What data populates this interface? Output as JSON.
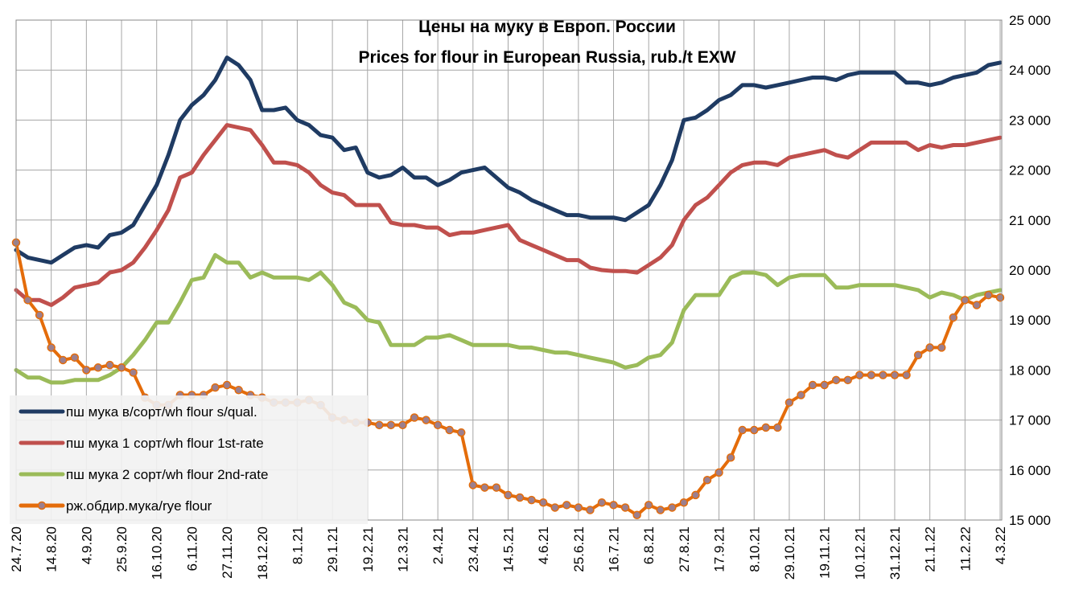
{
  "chart_data": {
    "type": "line",
    "title": [
      "Цены на муку в Европ. России",
      "Prices for flour in European Russia, rub./t EXW"
    ],
    "categories": [
      "24.7.20",
      null,
      null,
      "14.8.20",
      null,
      null,
      "4.9.20",
      null,
      null,
      "25.9.20",
      null,
      null,
      "16.10.20",
      null,
      null,
      "6.11.20",
      null,
      null,
      "27.11.20",
      null,
      null,
      "18.12.20",
      null,
      null,
      "8.1.21",
      null,
      null,
      "29.1.21",
      null,
      null,
      "19.2.21",
      null,
      null,
      "12.3.21",
      null,
      null,
      "2.4.21",
      null,
      null,
      "23.4.21",
      null,
      null,
      "14.5.21",
      null,
      null,
      "4.6.21",
      null,
      null,
      "25.6.21",
      null,
      null,
      "16.7.21",
      null,
      null,
      "6.8.21",
      null,
      null,
      "27.8.21",
      null,
      null,
      "17.9.21",
      null,
      null,
      "8.10.21",
      null,
      null,
      "29.10.21",
      null,
      null,
      "19.11.21",
      null,
      null,
      "10.12.21",
      null,
      null,
      "31.12.21",
      null,
      null,
      "21.1.22",
      null,
      null,
      "11.2.22",
      null,
      null,
      "4.3.22"
    ],
    "series": [
      {
        "name": "пш мука  в/сорт/wh  flour s/qual.",
        "color": "#1f3b63",
        "values": [
          20400,
          20250,
          20200,
          20150,
          20300,
          20450,
          20500,
          20450,
          20700,
          20750,
          20900,
          21300,
          21700,
          22300,
          23000,
          23300,
          23500,
          23800,
          24250,
          24100,
          23800,
          23200,
          23200,
          23250,
          23000,
          22900,
          22700,
          22650,
          22400,
          22450,
          21950,
          21850,
          21900,
          22050,
          21850,
          21850,
          21700,
          21800,
          21950,
          22000,
          22050,
          21850,
          21650,
          21550,
          21400,
          21300,
          21200,
          21100,
          21100,
          21050,
          21050,
          21050,
          21000,
          21150,
          21300,
          21700,
          22200,
          23000,
          23050,
          23200,
          23400,
          23500,
          23700,
          23700,
          23650,
          23700,
          23750,
          23800,
          23850,
          23850,
          23800,
          23900,
          23950,
          23950,
          23950,
          23950,
          23750,
          23750,
          23700,
          23750,
          23850,
          23900,
          23950,
          24100,
          24150
        ]
      },
      {
        "name": "пш мука  1 сорт/wh flour  1st-rate",
        "color": "#c0504d",
        "values": [
          19600,
          19400,
          19400,
          19300,
          19450,
          19650,
          19700,
          19750,
          19950,
          20000,
          20150,
          20450,
          20800,
          21200,
          21850,
          21950,
          22300,
          22600,
          22900,
          22850,
          22800,
          22500,
          22150,
          22150,
          22100,
          21950,
          21700,
          21550,
          21500,
          21300,
          21300,
          21300,
          20950,
          20900,
          20900,
          20850,
          20850,
          20700,
          20750,
          20750,
          20800,
          20850,
          20900,
          20600,
          20500,
          20400,
          20300,
          20200,
          20200,
          20050,
          20000,
          19980,
          19980,
          19950,
          20100,
          20250,
          20500,
          21000,
          21300,
          21450,
          21700,
          21950,
          22100,
          22150,
          22150,
          22100,
          22250,
          22300,
          22350,
          22400,
          22300,
          22250,
          22400,
          22550,
          22550,
          22550,
          22550,
          22400,
          22500,
          22450,
          22500,
          22500,
          22550,
          22600,
          22650
        ]
      },
      {
        "name": "пш мука  2 сорт/wh flour  2nd-rate",
        "color": "#9bbb59",
        "values": [
          18000,
          17850,
          17850,
          17750,
          17750,
          17800,
          17800,
          17800,
          17900,
          18050,
          18300,
          18600,
          18950,
          18950,
          19350,
          19800,
          19850,
          20300,
          20150,
          20150,
          19850,
          19950,
          19850,
          19850,
          19850,
          19800,
          19950,
          19700,
          19350,
          19250,
          19000,
          18950,
          18500,
          18500,
          18500,
          18650,
          18650,
          18700,
          18600,
          18500,
          18500,
          18500,
          18500,
          18450,
          18450,
          18400,
          18350,
          18350,
          18300,
          18250,
          18200,
          18150,
          18050,
          18100,
          18250,
          18300,
          18550,
          19200,
          19500,
          19500,
          19500,
          19850,
          19950,
          19950,
          19900,
          19700,
          19850,
          19900,
          19900,
          19900,
          19650,
          19650,
          19700,
          19700,
          19700,
          19700,
          19650,
          19600,
          19450,
          19550,
          19500,
          19400,
          19500,
          19550,
          19600
        ]
      },
      {
        "name": "рж.обдир.мука/rye  flour",
        "color": "#e46c0a",
        "markers": true,
        "values": [
          20550,
          19400,
          19100,
          18450,
          18200,
          18250,
          18000,
          18050,
          18100,
          18050,
          17950,
          17450,
          17300,
          17300,
          17500,
          17500,
          17500,
          17650,
          17700,
          17600,
          17500,
          17450,
          17350,
          17350,
          17350,
          17400,
          17300,
          17050,
          17000,
          16950,
          16950,
          16900,
          16900,
          16900,
          17050,
          17000,
          16900,
          16800,
          16750,
          15700,
          15650,
          15650,
          15500,
          15450,
          15400,
          15350,
          15250,
          15300,
          15250,
          15200,
          15350,
          15300,
          15250,
          15100,
          15300,
          15200,
          15250,
          15350,
          15500,
          15800,
          15950,
          16250,
          16800,
          16800,
          16850,
          16850,
          17350,
          17500,
          17700,
          17700,
          17800,
          17800,
          17900,
          17900,
          17900,
          17900,
          17900,
          18300,
          18450,
          18450,
          19050,
          19400,
          19300,
          19500,
          19450
        ]
      }
    ],
    "ylim": [
      15000,
      25000
    ],
    "yticks": [
      {
        "value": 15000,
        "label": "15 000"
      },
      {
        "value": 16000,
        "label": "16 000"
      },
      {
        "value": 17000,
        "label": "17 000"
      },
      {
        "value": 18000,
        "label": "18 000"
      },
      {
        "value": 19000,
        "label": "19 000"
      },
      {
        "value": 20000,
        "label": "20 000"
      },
      {
        "value": 21000,
        "label": "21 000"
      },
      {
        "value": 22000,
        "label": "22 000"
      },
      {
        "value": 23000,
        "label": "23 000"
      },
      {
        "value": 24000,
        "label": "24 000"
      },
      {
        "value": 25000,
        "label": "25 000"
      }
    ],
    "grid": true,
    "legend": "lower left"
  }
}
